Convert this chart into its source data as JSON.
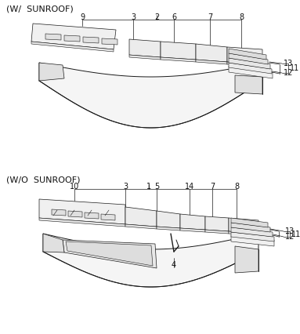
{
  "bg_color": "#ffffff",
  "line_color": "#1a1a1a",
  "title1": "(W/  SUNROOF)",
  "title2": "(W/O  SUNROOF)",
  "fig_width": 3.83,
  "fig_height": 4.26,
  "dpi": 100
}
